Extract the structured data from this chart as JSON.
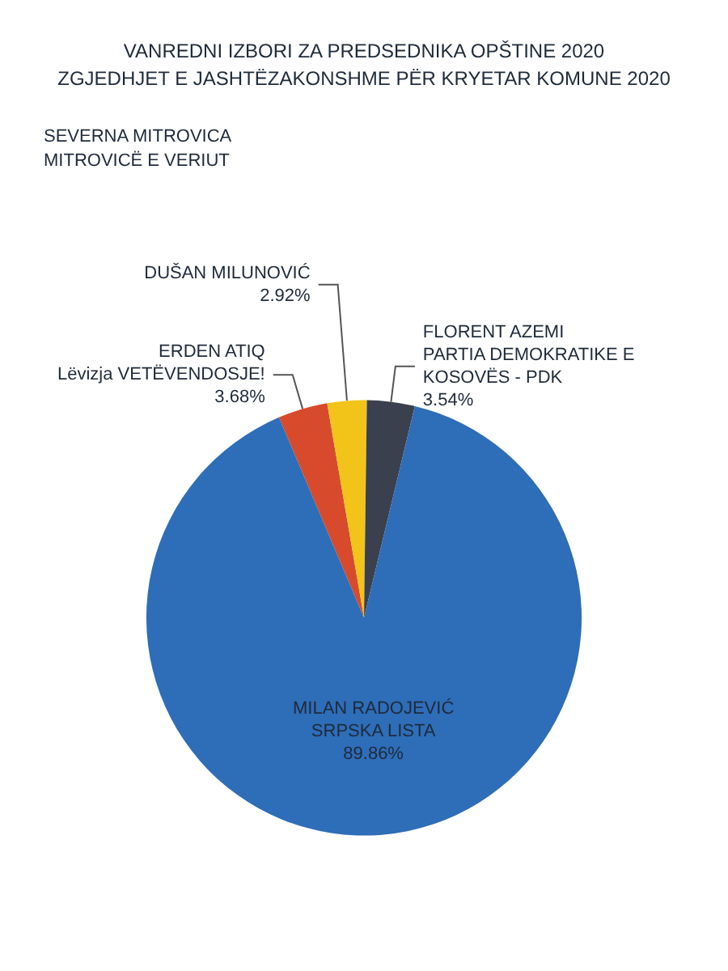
{
  "chart_data": {
    "type": "pie",
    "title": "VANREDNI IZBORI ZA PREDSEDNIKA OPŠTINE 2020\nZGJEDHJET E JASHTËZAKONSHME PËR KRYETAR KOMUNE 2020",
    "subtitle": "SEVERNA MITROVICA\nMITROVICË E VERIUT",
    "categories": [
      "ERDEN ATIQ\nLëvizja VETËVENDOSJE!",
      "DUŠAN MILUNOVIĆ",
      "FLORENT AZEMI\nPARTIA DEMOKRATIKE E\nKOSOVËS - PDK",
      "MILAN RADOJEVIĆ\nSRPSKA LISTA"
    ],
    "values": [
      3.68,
      2.92,
      3.54,
      89.86
    ],
    "value_labels": [
      "3.68%",
      "2.92%",
      "3.54%",
      "89.86%"
    ],
    "colors": [
      "#d84a2c",
      "#f2c419",
      "#3a404d",
      "#2e6db8"
    ]
  }
}
